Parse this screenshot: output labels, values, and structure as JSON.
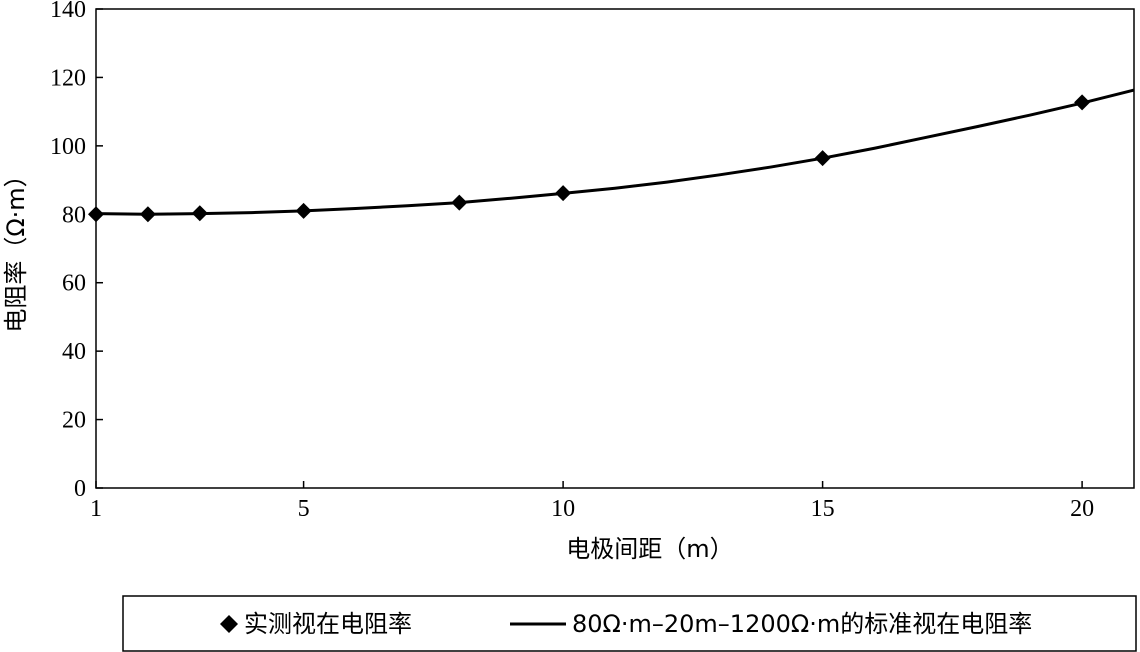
{
  "chart_data": {
    "type": "line",
    "title": "",
    "xlabel": "电极间距（m）",
    "ylabel": "电阻率（Ω·m）",
    "xlim": [
      1,
      21
    ],
    "ylim": [
      0,
      140
    ],
    "xticks": [
      1,
      5,
      10,
      15,
      20
    ],
    "yticks": [
      0,
      20,
      40,
      60,
      80,
      100,
      120,
      140
    ],
    "grid": false,
    "legend_placement": "bottom",
    "series": [
      {
        "name": "实测视在电阻率",
        "type": "scatter",
        "marker": "diamond",
        "color": "#000000",
        "x": [
          1,
          2,
          3,
          5,
          8,
          10,
          15,
          20
        ],
        "y": [
          80,
          80,
          80.3,
          81,
          83.4,
          86.2,
          96.4,
          112.7
        ]
      },
      {
        "name": "80Ω·m–20m–1200Ω·m的标准视在电阻率",
        "type": "line",
        "color": "#000000",
        "x": [
          1,
          2,
          3,
          4,
          5,
          6,
          7,
          8,
          9,
          10,
          11,
          12,
          13,
          14,
          15,
          16,
          17,
          18,
          19,
          20,
          21
        ],
        "y": [
          80.2,
          80.0,
          80.2,
          80.5,
          81.0,
          81.7,
          82.5,
          83.4,
          84.7,
          86.1,
          87.6,
          89.4,
          91.5,
          93.8,
          96.4,
          99.3,
          102.5,
          105.7,
          109.0,
          112.5,
          116.3
        ]
      }
    ]
  }
}
